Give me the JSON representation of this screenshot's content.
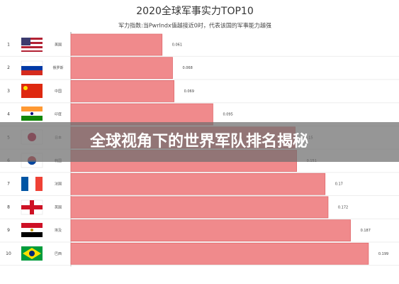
{
  "chart_data": {
    "type": "bar",
    "orientation": "horizontal",
    "title": "2020全球军事实力TOP10",
    "subtitle": "军力指数:当PwrIndx值越接近0时，代表该国的军事能力越强",
    "ranks": [
      1,
      2,
      3,
      4,
      5,
      6,
      7,
      8,
      9,
      10
    ],
    "categories": [
      "美国",
      "俄罗斯",
      "中国",
      "印度",
      "日本",
      "韩国",
      "法国",
      "英国",
      "埃及",
      "巴西"
    ],
    "values": [
      0.061,
      0.068,
      0.069,
      0.095,
      0.15,
      0.151,
      0.17,
      0.172,
      0.187,
      0.199
    ],
    "color": "#f08a8c",
    "xlim": [
      0,
      0.2
    ]
  },
  "banner": {
    "text": "全球视角下的世界军队排名揭秘"
  }
}
